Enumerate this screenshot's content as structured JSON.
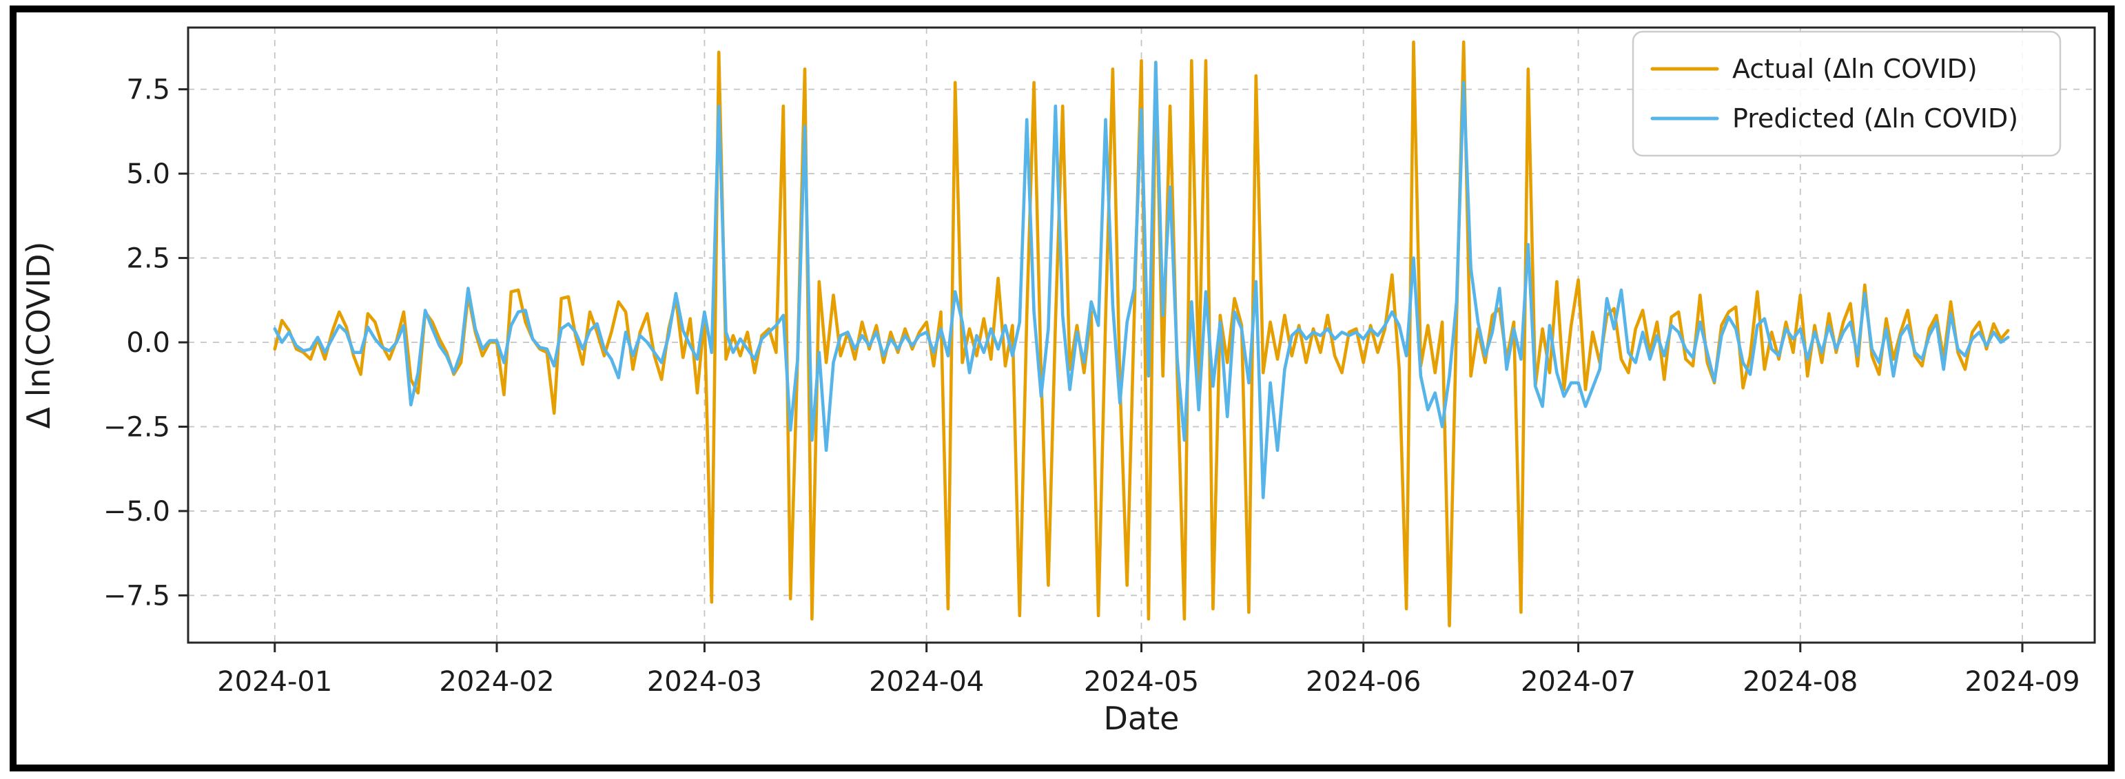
{
  "figure": {
    "background": "#ffffff",
    "outer_border_color": "#000000"
  },
  "chart_data": {
    "type": "line",
    "title": "",
    "xlabel": "Date",
    "ylabel": "Δ ln(COVID)",
    "grid": true,
    "grid_style": "dashed",
    "legend_position": "upper right",
    "start_date": "2024-01-01",
    "frequency": "daily",
    "x_domain": [
      -12.1,
      254.1
    ],
    "ylim": [
      -8.9,
      9.33
    ],
    "xticks": [
      {
        "day": 0,
        "label": "2024-01"
      },
      {
        "day": 31,
        "label": "2024-02"
      },
      {
        "day": 60,
        "label": "2024-03"
      },
      {
        "day": 91,
        "label": "2024-04"
      },
      {
        "day": 121,
        "label": "2024-05"
      },
      {
        "day": 152,
        "label": "2024-06"
      },
      {
        "day": 182,
        "label": "2024-07"
      },
      {
        "day": 213,
        "label": "2024-08"
      },
      {
        "day": 244,
        "label": "2024-09"
      }
    ],
    "yticks": [
      {
        "value": 7.5,
        "label": "7.5"
      },
      {
        "value": 5.0,
        "label": "5.0"
      },
      {
        "value": 2.5,
        "label": "2.5"
      },
      {
        "value": 0.0,
        "label": "0.0"
      },
      {
        "value": -2.5,
        "label": "−2.5"
      },
      {
        "value": -5.0,
        "label": "−5.0"
      },
      {
        "value": -7.5,
        "label": "−7.5"
      }
    ],
    "style": {
      "grid_color": "#c4c4c4",
      "spine_color": "#262626",
      "text_color": "#1c1c1c",
      "legend_border_color": "#cccccc",
      "legend_fill": "rgba(255,255,255,0.85)"
    },
    "series": [
      {
        "id": "actual",
        "label": "Actual (Δln COVID)",
        "color": "#E69F00",
        "values": [
          -0.2,
          0.65,
          0.35,
          -0.2,
          -0.3,
          -0.5,
          0.1,
          -0.5,
          0.3,
          0.9,
          0.45,
          -0.4,
          -0.95,
          0.85,
          0.6,
          -0.1,
          -0.5,
          0.05,
          0.9,
          -1.1,
          -1.5,
          0.9,
          0.6,
          0.1,
          -0.3,
          -0.95,
          -0.6,
          1.4,
          0.3,
          -0.4,
          0.0,
          0.0,
          -1.55,
          1.5,
          1.55,
          0.6,
          0.1,
          -0.2,
          -0.3,
          -2.1,
          1.3,
          1.35,
          0.2,
          -0.65,
          0.9,
          0.3,
          -0.4,
          0.3,
          1.2,
          0.9,
          -0.8,
          0.3,
          0.85,
          -0.4,
          -1.1,
          0.4,
          1.3,
          -0.45,
          0.7,
          -1.5,
          0.8,
          -7.7,
          8.6,
          -0.5,
          0.2,
          -0.4,
          0.3,
          -0.9,
          0.2,
          0.4,
          -0.3,
          7.0,
          -7.6,
          -0.4,
          8.1,
          -8.2,
          1.8,
          -0.6,
          1.4,
          -0.4,
          0.3,
          -0.5,
          0.6,
          -0.2,
          0.5,
          -0.6,
          0.3,
          -0.3,
          0.4,
          -0.2,
          0.3,
          0.6,
          -0.7,
          0.9,
          -7.9,
          7.7,
          -0.6,
          0.4,
          -0.4,
          0.7,
          -0.5,
          1.9,
          -0.7,
          0.5,
          -8.1,
          0.8,
          7.7,
          -1.0,
          -7.2,
          0.6,
          7.0,
          -0.8,
          0.5,
          -0.9,
          0.9,
          -8.1,
          0.7,
          8.1,
          -1.2,
          -7.2,
          0.8,
          8.35,
          -8.2,
          8.3,
          -1.0,
          7.0,
          -0.9,
          -8.2,
          8.35,
          -1.2,
          8.35,
          -7.9,
          0.8,
          -0.6,
          1.3,
          0.5,
          -8.0,
          7.9,
          -0.9,
          0.6,
          -0.5,
          0.8,
          -0.4,
          0.5,
          -0.6,
          0.4,
          -0.3,
          0.8,
          -0.4,
          -0.9,
          0.3,
          0.4,
          -0.6,
          0.5,
          -0.3,
          0.4,
          2.0,
          -0.8,
          -7.9,
          8.9,
          -0.7,
          0.5,
          -0.9,
          0.6,
          -8.4,
          0.7,
          8.9,
          -1.0,
          0.4,
          -0.6,
          0.8,
          1.0,
          -0.5,
          0.6,
          -8.0,
          8.1,
          -1.3,
          0.4,
          -0.9,
          1.8,
          -1.4,
          0.5,
          1.85,
          -1.4,
          0.3,
          -0.6,
          0.8,
          1.0,
          -0.5,
          -0.9,
          0.4,
          0.95,
          -0.3,
          0.6,
          -1.1,
          0.75,
          0.9,
          -0.5,
          -0.7,
          1.4,
          -0.6,
          -1.2,
          0.5,
          0.9,
          1.05,
          -1.35,
          -0.4,
          1.5,
          -0.8,
          0.3,
          -0.5,
          0.6,
          -0.3,
          1.4,
          -1.0,
          0.5,
          -0.6,
          0.85,
          -0.3,
          0.6,
          1.15,
          -0.7,
          1.7,
          -0.4,
          -0.95,
          0.7,
          -0.5,
          0.3,
          0.95,
          -0.4,
          -0.7,
          0.4,
          0.8,
          -0.5,
          1.2,
          -0.3,
          -0.8,
          0.3,
          0.6,
          -0.2,
          0.55,
          0.1,
          0.35
        ]
      },
      {
        "id": "predicted",
        "label": "Predicted (Δln COVID)",
        "color": "#56B4E9",
        "values": [
          0.4,
          0.0,
          0.3,
          -0.1,
          -0.25,
          -0.2,
          0.15,
          -0.3,
          0.1,
          0.5,
          0.3,
          -0.3,
          -0.3,
          0.45,
          0.1,
          -0.15,
          -0.25,
          0.0,
          0.5,
          -1.85,
          -0.9,
          0.95,
          0.4,
          -0.1,
          -0.4,
          -0.9,
          -0.3,
          1.6,
          0.4,
          -0.2,
          0.05,
          0.05,
          -0.6,
          0.5,
          0.9,
          0.95,
          0.1,
          -0.15,
          -0.2,
          -0.7,
          0.4,
          0.55,
          0.3,
          -0.2,
          0.35,
          0.55,
          -0.2,
          -0.5,
          -1.05,
          0.3,
          -0.4,
          0.2,
          0.0,
          -0.3,
          -0.6,
          0.2,
          1.45,
          0.35,
          -0.1,
          -0.5,
          0.9,
          -0.3,
          7.0,
          0.3,
          -0.3,
          0.1,
          -0.2,
          -0.5,
          0.1,
          0.3,
          0.5,
          0.8,
          -2.6,
          -0.5,
          6.4,
          -2.9,
          -0.3,
          -3.2,
          -0.6,
          0.2,
          0.3,
          -0.2,
          0.2,
          -0.1,
          0.3,
          -0.4,
          0.1,
          -0.2,
          0.2,
          -0.1,
          0.2,
          0.3,
          -0.3,
          0.4,
          -0.4,
          1.5,
          0.6,
          -0.9,
          0.2,
          -0.3,
          0.4,
          -0.2,
          0.5,
          -0.4,
          0.6,
          6.6,
          0.9,
          -1.6,
          0.4,
          7.0,
          0.8,
          -1.4,
          0.3,
          -0.6,
          1.2,
          0.5,
          6.6,
          1.1,
          -1.8,
          0.6,
          1.6,
          6.9,
          -1.0,
          8.3,
          0.8,
          4.6,
          -0.5,
          -2.9,
          1.2,
          -2.0,
          1.5,
          -1.3,
          0.6,
          -2.2,
          0.9,
          0.4,
          -1.2,
          1.8,
          -4.6,
          -1.2,
          -3.2,
          -0.8,
          0.2,
          0.4,
          0.1,
          0.3,
          0.2,
          0.4,
          0.1,
          0.3,
          0.2,
          0.3,
          0.1,
          0.4,
          0.2,
          0.5,
          0.9,
          0.5,
          -0.4,
          2.5,
          -1.0,
          -2.0,
          -1.5,
          -2.5,
          -1.0,
          1.2,
          7.7,
          2.2,
          0.6,
          -0.4,
          0.3,
          1.6,
          -0.8,
          0.4,
          -0.5,
          2.9,
          -1.3,
          -1.9,
          0.5,
          -0.9,
          -1.6,
          -1.2,
          -1.2,
          -1.9,
          -1.35,
          -0.8,
          1.3,
          0.4,
          1.55,
          -0.3,
          -0.6,
          0.3,
          -0.5,
          0.2,
          -0.4,
          0.5,
          0.3,
          -0.2,
          -0.45,
          0.6,
          -0.3,
          -1.15,
          0.2,
          0.75,
          0.4,
          -0.6,
          -0.95,
          0.5,
          0.7,
          -0.2,
          -0.4,
          0.4,
          0.1,
          0.4,
          -0.5,
          0.3,
          -0.3,
          0.5,
          -0.2,
          0.3,
          0.6,
          -0.4,
          1.45,
          -0.2,
          -0.6,
          0.4,
          -1.0,
          0.2,
          0.5,
          -0.3,
          -0.5,
          0.2,
          0.6,
          -0.8,
          0.85,
          -0.2,
          -0.4,
          0.1,
          0.3,
          -0.1,
          0.3,
          0.0,
          0.15
        ]
      }
    ]
  }
}
